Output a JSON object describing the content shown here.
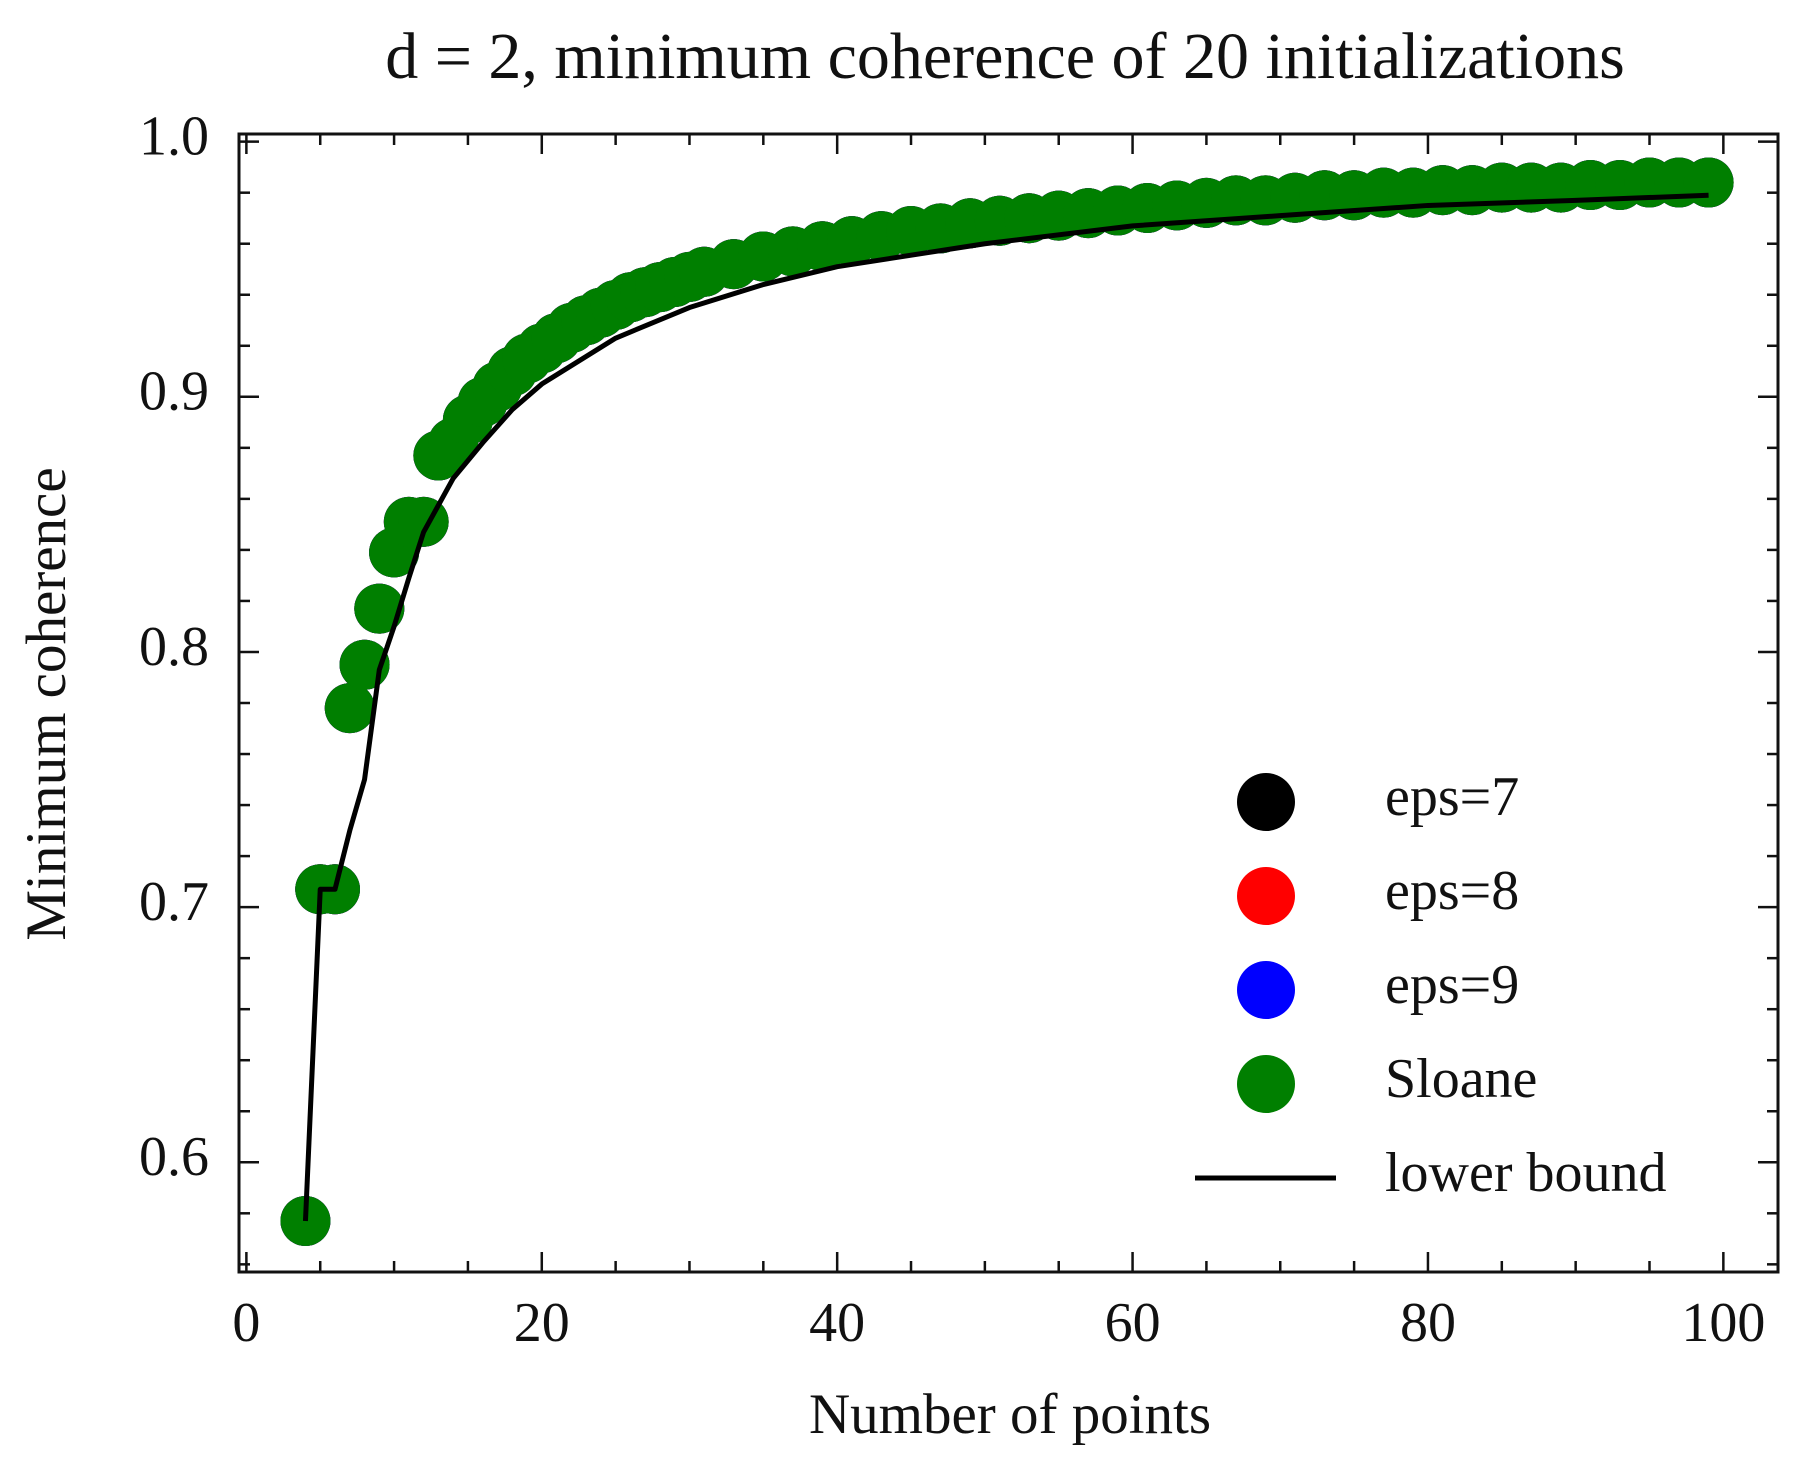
{
  "chart_data": {
    "type": "scatter",
    "title": "d = 2, minimum coherence of 20 initializations",
    "xlabel": "Number of points",
    "ylabel": "Minimum coherence",
    "xlim": [
      -0.5,
      103.7
    ],
    "ylim": [
      0.557,
      1.003
    ],
    "xticks": [
      0,
      20,
      40,
      60,
      80,
      100
    ],
    "xminorticks": [
      5,
      10,
      15,
      25,
      30,
      35,
      45,
      50,
      55,
      65,
      70,
      75,
      85,
      90,
      95
    ],
    "yticks": [
      0.6,
      0.7,
      0.8,
      0.9,
      {
        "value": 1,
        "label": "1.0"
      }
    ],
    "yminorticks": [
      0.56,
      0.58,
      0.62,
      0.64,
      0.66,
      0.68,
      0.72,
      0.74,
      0.76,
      0.78,
      0.82,
      0.84,
      0.86,
      0.88,
      0.92,
      0.94,
      0.96,
      0.98
    ],
    "legend": "lower right",
    "series": [
      {
        "name": "eps=7",
        "color": "#000000",
        "kind": "points",
        "x": [
          4,
          5,
          6,
          7,
          8,
          9,
          10,
          11,
          12,
          13,
          14,
          15,
          16,
          17,
          18,
          19,
          20,
          21,
          22,
          23,
          24,
          25,
          26,
          27,
          28,
          29,
          30,
          31,
          33,
          35,
          37,
          39,
          41,
          43,
          45,
          47,
          49,
          51,
          53,
          55,
          57,
          59,
          61,
          63,
          65,
          67,
          69,
          71,
          73,
          75,
          77,
          79,
          81,
          83,
          85,
          87,
          89,
          91,
          93,
          95,
          97,
          99
        ],
        "values": [
          0.577,
          0.707,
          0.707,
          0.778,
          0.795,
          0.817,
          0.839,
          0.851,
          0.851,
          0.877,
          0.882,
          0.891,
          0.898,
          0.904,
          0.91,
          0.915,
          0.919,
          0.923,
          0.927,
          0.93,
          0.933,
          0.936,
          0.939,
          0.941,
          0.943,
          0.945,
          0.947,
          0.949,
          0.952,
          0.955,
          0.957,
          0.959,
          0.961,
          0.963,
          0.965,
          0.966,
          0.968,
          0.969,
          0.97,
          0.971,
          0.972,
          0.973,
          0.974,
          0.975,
          0.976,
          0.977,
          0.977,
          0.978,
          0.979,
          0.979,
          0.98,
          0.98,
          0.981,
          0.981,
          0.982,
          0.982,
          0.982,
          0.983,
          0.983,
          0.984,
          0.984,
          0.984
        ]
      },
      {
        "name": "eps=8",
        "color": "#ff0000",
        "kind": "points",
        "x": [
          4,
          5,
          6,
          7,
          8,
          9,
          10,
          11,
          12,
          13,
          14,
          15,
          16,
          17,
          18,
          19,
          20,
          21,
          22,
          23,
          24,
          25,
          26,
          27,
          28,
          29,
          30,
          31,
          33,
          35,
          37,
          39,
          41,
          43,
          45,
          47,
          49,
          51,
          53,
          55,
          57,
          59,
          61,
          63,
          65,
          67,
          69,
          71,
          73,
          75,
          77,
          79,
          81,
          83,
          85,
          87,
          89,
          91,
          93,
          95,
          97,
          99
        ],
        "values": [
          0.577,
          0.707,
          0.707,
          0.778,
          0.795,
          0.817,
          0.839,
          0.851,
          0.851,
          0.877,
          0.882,
          0.891,
          0.898,
          0.904,
          0.91,
          0.915,
          0.919,
          0.923,
          0.927,
          0.93,
          0.933,
          0.936,
          0.939,
          0.941,
          0.943,
          0.945,
          0.947,
          0.949,
          0.952,
          0.955,
          0.957,
          0.959,
          0.961,
          0.963,
          0.965,
          0.966,
          0.968,
          0.969,
          0.97,
          0.971,
          0.972,
          0.973,
          0.974,
          0.975,
          0.976,
          0.977,
          0.977,
          0.978,
          0.979,
          0.979,
          0.98,
          0.98,
          0.981,
          0.981,
          0.982,
          0.982,
          0.982,
          0.983,
          0.983,
          0.984,
          0.984,
          0.984
        ]
      },
      {
        "name": "eps=9",
        "color": "#0000ff",
        "kind": "points",
        "x": [
          4,
          5,
          6,
          7,
          8,
          9,
          10,
          11,
          12,
          13,
          14,
          15,
          16,
          17,
          18,
          19,
          20,
          21,
          22,
          23,
          24,
          25,
          26,
          27,
          28,
          29,
          30,
          31,
          33,
          35,
          37,
          39,
          41,
          43,
          45,
          47,
          49,
          51,
          53,
          55,
          57,
          59,
          61,
          63,
          65,
          67,
          69,
          71,
          73,
          75,
          77,
          79,
          81,
          83,
          85,
          87,
          89,
          91,
          93,
          95,
          97,
          99
        ],
        "values": [
          0.577,
          0.707,
          0.707,
          0.778,
          0.795,
          0.817,
          0.839,
          0.851,
          0.851,
          0.877,
          0.882,
          0.891,
          0.898,
          0.904,
          0.91,
          0.915,
          0.919,
          0.923,
          0.927,
          0.93,
          0.933,
          0.936,
          0.939,
          0.941,
          0.943,
          0.945,
          0.947,
          0.949,
          0.952,
          0.955,
          0.957,
          0.959,
          0.961,
          0.963,
          0.965,
          0.966,
          0.968,
          0.969,
          0.97,
          0.971,
          0.972,
          0.973,
          0.974,
          0.975,
          0.976,
          0.977,
          0.977,
          0.978,
          0.979,
          0.979,
          0.98,
          0.98,
          0.981,
          0.981,
          0.982,
          0.982,
          0.982,
          0.983,
          0.983,
          0.984,
          0.984,
          0.984
        ]
      },
      {
        "name": "Sloane",
        "color": "#007f00",
        "kind": "points",
        "x": [
          4,
          5,
          6,
          7,
          8,
          9,
          10,
          11,
          12,
          13,
          14,
          15,
          16,
          17,
          18,
          19,
          20,
          21,
          22,
          23,
          24,
          25,
          26,
          27,
          28,
          29,
          30,
          31,
          33,
          35,
          37,
          39,
          41,
          43,
          45,
          47,
          49,
          51,
          53,
          55,
          57,
          59,
          61,
          63,
          65,
          67,
          69,
          71,
          73,
          75,
          77,
          79,
          81,
          83,
          85,
          87,
          89,
          91,
          93,
          95,
          97,
          99
        ],
        "values": [
          0.577,
          0.707,
          0.707,
          0.778,
          0.795,
          0.817,
          0.839,
          0.851,
          0.851,
          0.877,
          0.882,
          0.891,
          0.898,
          0.904,
          0.91,
          0.915,
          0.919,
          0.923,
          0.927,
          0.93,
          0.933,
          0.936,
          0.939,
          0.941,
          0.943,
          0.945,
          0.947,
          0.949,
          0.952,
          0.955,
          0.957,
          0.959,
          0.961,
          0.963,
          0.965,
          0.966,
          0.968,
          0.969,
          0.97,
          0.971,
          0.972,
          0.973,
          0.974,
          0.975,
          0.976,
          0.977,
          0.977,
          0.978,
          0.979,
          0.979,
          0.98,
          0.98,
          0.981,
          0.981,
          0.982,
          0.982,
          0.982,
          0.983,
          0.983,
          0.984,
          0.984,
          0.984
        ]
      },
      {
        "name": "lower bound",
        "color": "#000000",
        "kind": "line",
        "x": [
          4,
          5,
          6,
          7,
          8,
          9,
          10,
          11,
          12,
          14,
          16,
          18,
          20,
          25,
          30,
          35,
          40,
          50,
          60,
          70,
          80,
          90,
          99
        ],
        "values": [
          0.577,
          0.707,
          0.707,
          0.73,
          0.75,
          0.793,
          0.81,
          0.829,
          0.847,
          0.868,
          0.882,
          0.895,
          0.905,
          0.923,
          0.935,
          0.944,
          0.951,
          0.96,
          0.967,
          0.971,
          0.975,
          0.977,
          0.979
        ]
      }
    ]
  }
}
